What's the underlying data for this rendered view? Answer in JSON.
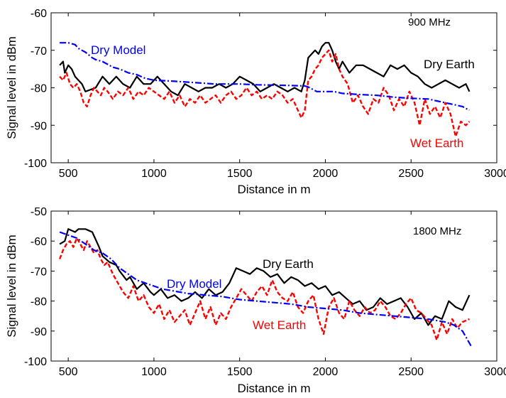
{
  "colors": {
    "dry_earth": "#000000",
    "wet_earth": "#ff0000",
    "dry_model": "#0000ff"
  },
  "chart_data": [
    {
      "type": "line",
      "frequency_label": "900 MHz",
      "xlabel": "Distance in m",
      "ylabel": "Signal level in dBm",
      "xlim": [
        400,
        3000
      ],
      "ylim": [
        -100,
        -60
      ],
      "xticks": [
        "500",
        "1000",
        "1500",
        "2000",
        "2500",
        "3000"
      ],
      "xtick_values": [
        500,
        1000,
        1500,
        2000,
        2500,
        3000
      ],
      "yticks": [
        "-100",
        "-90",
        "-80",
        "-70",
        "-60"
      ],
      "ytick_values": [
        -100,
        -90,
        -80,
        -70,
        -60
      ],
      "annotations": {
        "dry_earth": "Dry Earth",
        "wet_earth": "Wet Earth",
        "dry_model": "Dry Model"
      },
      "series": [
        {
          "key": "dry_earth",
          "x": [
            450,
            470,
            480,
            500,
            520,
            540,
            580,
            600,
            660,
            700,
            740,
            780,
            820,
            860,
            900,
            940,
            980,
            1020,
            1060,
            1100,
            1140,
            1180,
            1220,
            1260,
            1300,
            1340,
            1380,
            1420,
            1460,
            1500,
            1540,
            1580,
            1620,
            1660,
            1700,
            1740,
            1780,
            1820,
            1860,
            1880,
            1900,
            1920,
            1940,
            1960,
            1980,
            2000,
            2020,
            2040,
            2060,
            2080,
            2100,
            2140,
            2180,
            2220,
            2260,
            2300,
            2340,
            2380,
            2420,
            2460,
            2500,
            2540,
            2580,
            2620,
            2660,
            2700,
            2740,
            2780,
            2820,
            2840
          ],
          "y": [
            -74,
            -73,
            -76,
            -74,
            -75,
            -77,
            -79,
            -81,
            -80,
            -77,
            -79,
            -77,
            -79,
            -80,
            -77,
            -79,
            -79,
            -77,
            -79,
            -81,
            -82,
            -79,
            -80,
            -81,
            -80,
            -80,
            -79,
            -80,
            -79,
            -77,
            -78,
            -79,
            -81,
            -80,
            -79,
            -80,
            -81,
            -80,
            -81,
            -78,
            -72,
            -71,
            -70,
            -71,
            -69,
            -68,
            -68,
            -70,
            -73,
            -75,
            -73,
            -76,
            -74,
            -74,
            -75,
            -76,
            -77,
            -74,
            -75,
            -74,
            -76,
            -77,
            -79,
            -80,
            -79,
            -78,
            -79,
            -80,
            -79,
            -81
          ]
        },
        {
          "key": "wet_earth",
          "x": [
            450,
            470,
            490,
            510,
            530,
            550,
            570,
            590,
            610,
            630,
            650,
            670,
            690,
            710,
            730,
            760,
            790,
            820,
            850,
            880,
            910,
            940,
            970,
            1000,
            1030,
            1060,
            1090,
            1120,
            1150,
            1180,
            1210,
            1240,
            1270,
            1300,
            1330,
            1360,
            1390,
            1420,
            1450,
            1480,
            1510,
            1540,
            1570,
            1600,
            1630,
            1660,
            1690,
            1720,
            1750,
            1780,
            1810,
            1840,
            1860,
            1880,
            1900,
            1920,
            1940,
            1960,
            1980,
            2000,
            2020,
            2040,
            2060,
            2080,
            2100,
            2130,
            2160,
            2190,
            2220,
            2250,
            2280,
            2310,
            2340,
            2370,
            2400,
            2430,
            2460,
            2490,
            2520,
            2550,
            2580,
            2610,
            2640,
            2670,
            2700,
            2730,
            2760,
            2790,
            2820,
            2840
          ],
          "y": [
            -77,
            -78,
            -76,
            -79,
            -80,
            -79,
            -81,
            -84,
            -85,
            -82,
            -80,
            -81,
            -82,
            -80,
            -81,
            -83,
            -81,
            -82,
            -80,
            -83,
            -81,
            -82,
            -80,
            -81,
            -82,
            -83,
            -81,
            -84,
            -82,
            -85,
            -83,
            -84,
            -82,
            -84,
            -83,
            -82,
            -84,
            -82,
            -81,
            -83,
            -82,
            -80,
            -82,
            -81,
            -83,
            -82,
            -83,
            -81,
            -82,
            -84,
            -83,
            -86,
            -88,
            -86,
            -78,
            -77,
            -75,
            -74,
            -72,
            -71,
            -70,
            -73,
            -71,
            -75,
            -77,
            -79,
            -84,
            -82,
            -85,
            -87,
            -83,
            -84,
            -80,
            -82,
            -86,
            -83,
            -85,
            -81,
            -84,
            -90,
            -83,
            -87,
            -85,
            -88,
            -84,
            -87,
            -93,
            -89,
            -90,
            -89
          ]
        },
        {
          "key": "dry_model",
          "x": [
            450,
            500,
            540,
            560,
            600,
            640,
            660,
            700,
            760,
            800,
            850,
            900,
            950,
            1000,
            1100,
            1200,
            1300,
            1350,
            1500,
            1600,
            1700,
            1800,
            1880,
            1900,
            1950,
            2000,
            2050,
            2100,
            2200,
            2300,
            2400,
            2500,
            2600,
            2650,
            2700,
            2750,
            2800,
            2840
          ],
          "y": [
            -68,
            -68,
            -68.5,
            -69.5,
            -70.5,
            -72,
            -72.5,
            -73,
            -74.5,
            -75,
            -76,
            -76.5,
            -77.5,
            -78,
            -78.2,
            -78.5,
            -78.8,
            -79,
            -79,
            -79.2,
            -79.3,
            -79.4,
            -79.5,
            -79.8,
            -81,
            -81,
            -81,
            -81.5,
            -81.8,
            -82,
            -82.5,
            -82.8,
            -83,
            -83.5,
            -84,
            -84.5,
            -85,
            -86
          ]
        }
      ]
    },
    {
      "type": "line",
      "frequency_label": "1800 MHz",
      "xlabel": "Distance in m",
      "ylabel": "Signal level in dBm",
      "xlim": [
        400,
        3000
      ],
      "ylim": [
        -100,
        -50
      ],
      "xticks": [
        "500",
        "1000",
        "1500",
        "2000",
        "2500",
        "3000"
      ],
      "xtick_values": [
        500,
        1000,
        1500,
        2000,
        2500,
        3000
      ],
      "yticks": [
        "-100",
        "-90",
        "-80",
        "-70",
        "-60",
        "-50"
      ],
      "ytick_values": [
        -100,
        -90,
        -80,
        -70,
        -60,
        -50
      ],
      "annotations": {
        "dry_earth": "Dry Earth",
        "wet_earth": "Wet Earth",
        "dry_model": "Dry Model"
      },
      "series": [
        {
          "key": "dry_earth",
          "x": [
            450,
            480,
            500,
            540,
            560,
            600,
            640,
            680,
            700,
            740,
            780,
            800,
            840,
            860,
            900,
            940,
            980,
            1000,
            1040,
            1080,
            1120,
            1160,
            1200,
            1240,
            1280,
            1320,
            1360,
            1400,
            1440,
            1480,
            1520,
            1560,
            1600,
            1640,
            1680,
            1720,
            1760,
            1800,
            1840,
            1880,
            1920,
            1960,
            2000,
            2040,
            2080,
            2120,
            2160,
            2200,
            2240,
            2280,
            2320,
            2360,
            2400,
            2440,
            2480,
            2520,
            2560,
            2600,
            2640,
            2680,
            2720,
            2760,
            2800,
            2840
          ],
          "y": [
            -61,
            -60,
            -56,
            -57,
            -56,
            -56,
            -57,
            -62,
            -65,
            -67,
            -68,
            -70,
            -73,
            -72,
            -76,
            -74,
            -77,
            -78,
            -76,
            -79,
            -78,
            -80,
            -79,
            -77,
            -79,
            -76,
            -78,
            -77,
            -74,
            -69,
            -70,
            -71,
            -69,
            -70,
            -72,
            -71,
            -74,
            -72,
            -73,
            -75,
            -74,
            -76,
            -75,
            -78,
            -77,
            -79,
            -81,
            -80,
            -83,
            -82,
            -79,
            -81,
            -80,
            -79,
            -82,
            -86,
            -84,
            -88,
            -85,
            -86,
            -80,
            -82,
            -83,
            -78
          ]
        },
        {
          "key": "wet_earth",
          "x": [
            450,
            470,
            490,
            510,
            530,
            550,
            570,
            590,
            610,
            630,
            650,
            670,
            690,
            710,
            730,
            760,
            790,
            820,
            850,
            880,
            910,
            940,
            970,
            1000,
            1030,
            1060,
            1090,
            1120,
            1150,
            1180,
            1210,
            1240,
            1270,
            1300,
            1330,
            1360,
            1390,
            1420,
            1450,
            1480,
            1510,
            1540,
            1570,
            1600,
            1630,
            1660,
            1690,
            1720,
            1750,
            1780,
            1810,
            1840,
            1870,
            1900,
            1930,
            1960,
            1990,
            2020,
            2050,
            2080,
            2110,
            2140,
            2170,
            2200,
            2230,
            2260,
            2290,
            2320,
            2350,
            2380,
            2410,
            2440,
            2470,
            2500,
            2530,
            2560,
            2590,
            2620,
            2650,
            2680,
            2710,
            2740,
            2770,
            2800,
            2840
          ],
          "y": [
            -66,
            -63,
            -61,
            -60,
            -62,
            -59,
            -61,
            -63,
            -60,
            -62,
            -64,
            -63,
            -66,
            -68,
            -67,
            -71,
            -74,
            -77,
            -79,
            -75,
            -80,
            -78,
            -82,
            -84,
            -81,
            -86,
            -83,
            -87,
            -85,
            -83,
            -88,
            -84,
            -80,
            -86,
            -82,
            -88,
            -84,
            -86,
            -82,
            -79,
            -76,
            -78,
            -80,
            -77,
            -75,
            -78,
            -73,
            -77,
            -79,
            -80,
            -77,
            -82,
            -84,
            -80,
            -78,
            -86,
            -91,
            -82,
            -79,
            -84,
            -86,
            -80,
            -83,
            -85,
            -82,
            -84,
            -83,
            -80,
            -82,
            -85,
            -86,
            -84,
            -81,
            -79,
            -83,
            -84,
            -86,
            -88,
            -93,
            -87,
            -91,
            -86,
            -89,
            -87,
            -86
          ]
        },
        {
          "key": "dry_model",
          "x": [
            450,
            500,
            550,
            600,
            650,
            700,
            750,
            800,
            850,
            900,
            950,
            1000,
            1050,
            1100,
            1200,
            1300,
            1400,
            1450,
            1500,
            1600,
            1700,
            1800,
            1900,
            2000,
            2100,
            2200,
            2300,
            2400,
            2500,
            2600,
            2700,
            2750,
            2800,
            2850
          ],
          "y": [
            -57,
            -58,
            -59,
            -61,
            -63,
            -64,
            -66,
            -69,
            -71,
            -73,
            -74,
            -75,
            -76,
            -76.5,
            -77.5,
            -78,
            -78.5,
            -79,
            -79.5,
            -80,
            -80.5,
            -81,
            -82,
            -82.5,
            -83,
            -84,
            -84.5,
            -85,
            -85.5,
            -86,
            -87,
            -88,
            -90,
            -95
          ]
        }
      ]
    }
  ]
}
